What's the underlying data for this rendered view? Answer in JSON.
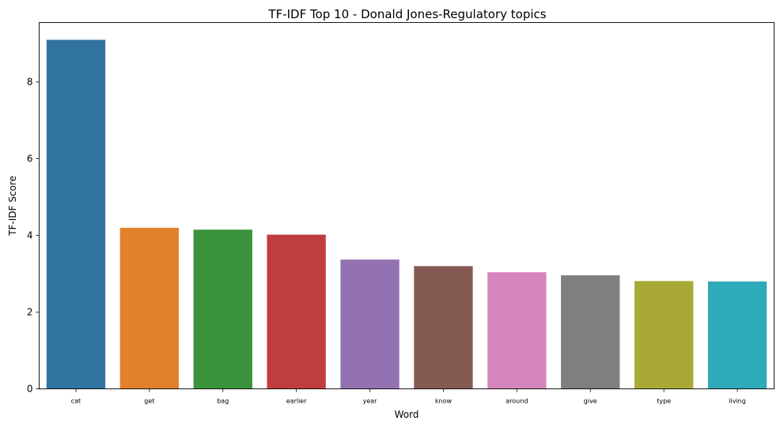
{
  "chart_data": {
    "type": "bar",
    "title": "TF-IDF Top 10 - Donald Jones-Regulatory topics",
    "xlabel": "Word",
    "ylabel": "TF-IDF Score",
    "categories": [
      "cat",
      "get",
      "bag",
      "earlier",
      "year",
      "know",
      "around",
      "give",
      "type",
      "living"
    ],
    "values": [
      9.1,
      4.2,
      4.15,
      4.02,
      3.37,
      3.2,
      3.04,
      2.96,
      2.81,
      2.8
    ],
    "colors": [
      "#3274a1",
      "#e1812c",
      "#3a923a",
      "#c03d3e",
      "#9372b2",
      "#845b53",
      "#d684bd",
      "#7f7f7f",
      "#a9aa35",
      "#2eaab8"
    ],
    "ylim": [
      0,
      9.55
    ],
    "yticks": [
      0,
      2,
      4,
      6,
      8
    ],
    "grid": false,
    "legend": "none"
  }
}
